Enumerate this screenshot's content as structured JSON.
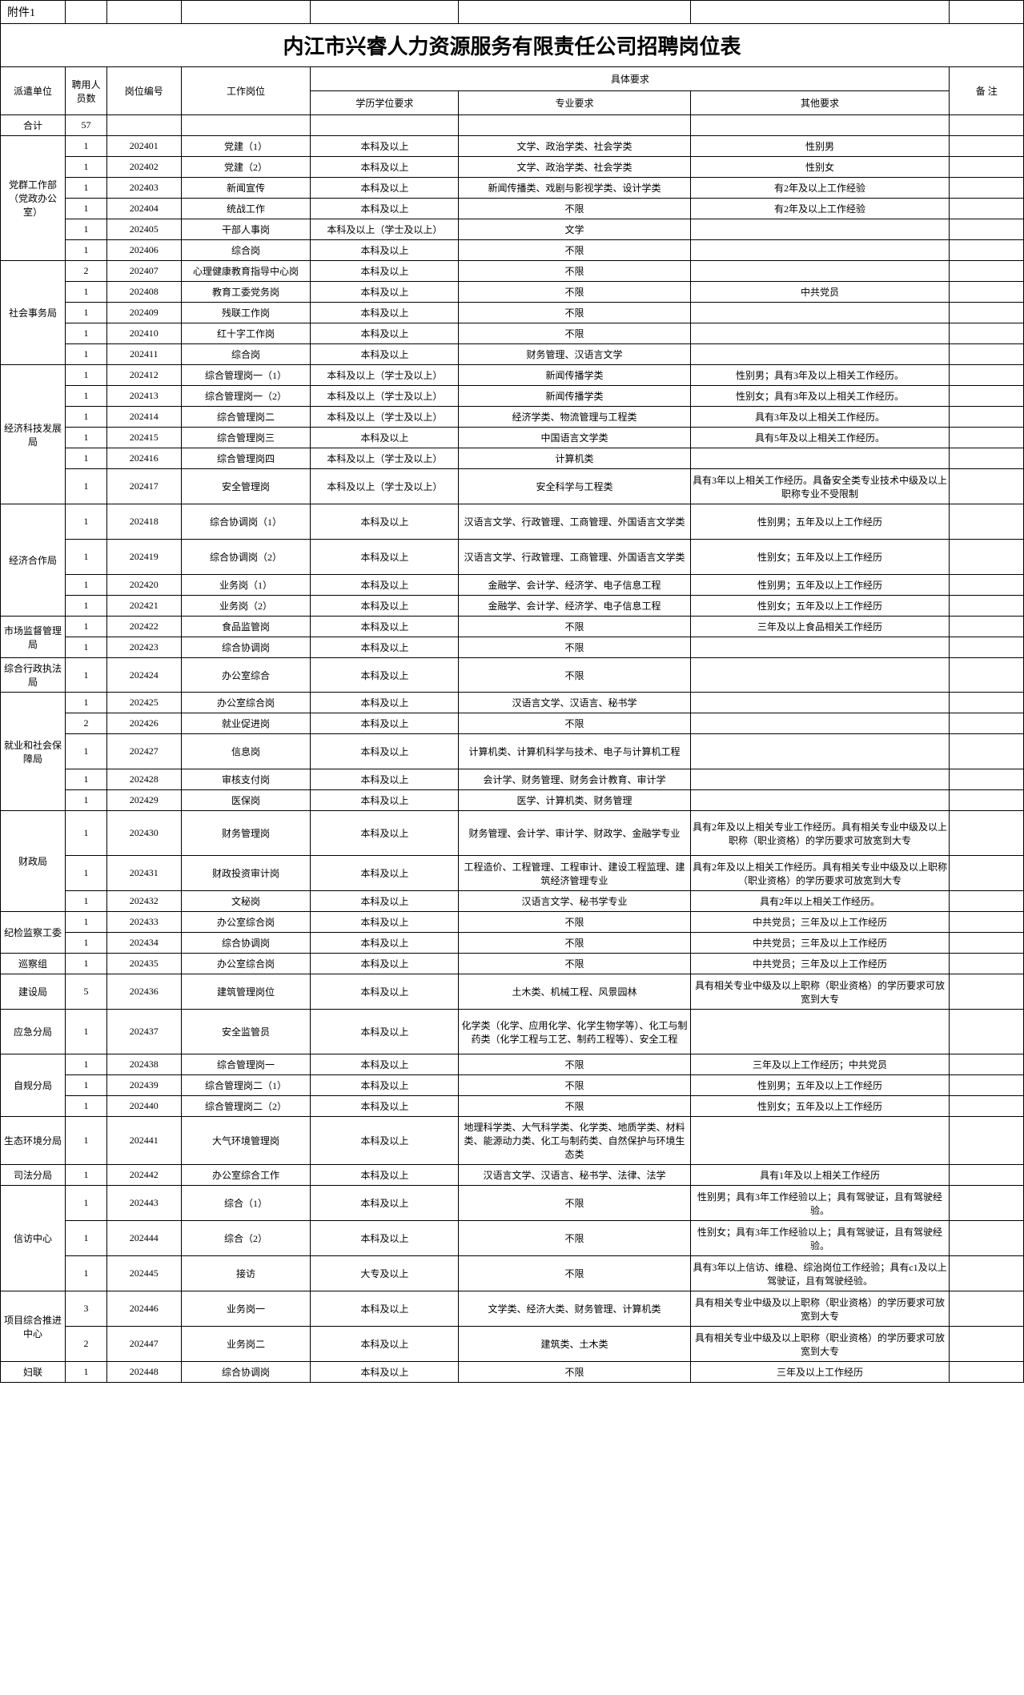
{
  "attach_label": "附件1",
  "title": "内江市兴睿人力资源服务有限责任公司招聘岗位表",
  "headers": {
    "unit": "派遣单位",
    "count": "聘用人员数",
    "code": "岗位编号",
    "position": "工作岗位",
    "req_group": "具体要求",
    "edu": "学历学位要求",
    "major": "专业要求",
    "other": "其他要求",
    "remark": "备  注"
  },
  "total_label": "合计",
  "total_count": "57",
  "groups": [
    {
      "unit": "党群工作部（党政办公室）",
      "rows": [
        {
          "count": "1",
          "code": "202401",
          "position": "党建（1）",
          "edu": "本科及以上",
          "major": "文学、政治学类、社会学类",
          "other": "性别男",
          "remark": ""
        },
        {
          "count": "1",
          "code": "202402",
          "position": "党建（2）",
          "edu": "本科及以上",
          "major": "文学、政治学类、社会学类",
          "other": "性别女",
          "remark": ""
        },
        {
          "count": "1",
          "code": "202403",
          "position": "新闻宣传",
          "edu": "本科及以上",
          "major": "新闻传播类、戏剧与影视学类、设计学类",
          "other": "有2年及以上工作经验",
          "remark": ""
        },
        {
          "count": "1",
          "code": "202404",
          "position": "统战工作",
          "edu": "本科及以上",
          "major": "不限",
          "other": "有2年及以上工作经验",
          "remark": ""
        },
        {
          "count": "1",
          "code": "202405",
          "position": "干部人事岗",
          "edu": "本科及以上（学士及以上）",
          "major": "文学",
          "other": "",
          "remark": ""
        },
        {
          "count": "1",
          "code": "202406",
          "position": "综合岗",
          "edu": "本科及以上",
          "major": "不限",
          "other": "",
          "remark": ""
        }
      ]
    },
    {
      "unit": "社会事务局",
      "rows": [
        {
          "count": "2",
          "code": "202407",
          "position": "心理健康教育指导中心岗",
          "edu": "本科及以上",
          "major": "不限",
          "other": "",
          "remark": ""
        },
        {
          "count": "1",
          "code": "202408",
          "position": "教育工委党务岗",
          "edu": "本科及以上",
          "major": "不限",
          "other": "中共党员",
          "remark": ""
        },
        {
          "count": "1",
          "code": "202409",
          "position": "残联工作岗",
          "edu": "本科及以上",
          "major": "不限",
          "other": "",
          "remark": ""
        },
        {
          "count": "1",
          "code": "202410",
          "position": "红十字工作岗",
          "edu": "本科及以上",
          "major": "不限",
          "other": "",
          "remark": ""
        },
        {
          "count": "1",
          "code": "202411",
          "position": "综合岗",
          "edu": "本科及以上",
          "major": "财务管理、汉语言文学",
          "other": "",
          "remark": ""
        }
      ]
    },
    {
      "unit": "经济科技发展局",
      "rows": [
        {
          "count": "1",
          "code": "202412",
          "position": "综合管理岗一（1）",
          "edu": "本科及以上（学士及以上）",
          "major": "新闻传播学类",
          "other": "性别男；具有3年及以上相关工作经历。",
          "remark": ""
        },
        {
          "count": "1",
          "code": "202413",
          "position": "综合管理岗一（2）",
          "edu": "本科及以上（学士及以上）",
          "major": "新闻传播学类",
          "other": "性别女；具有3年及以上相关工作经历。",
          "remark": ""
        },
        {
          "count": "1",
          "code": "202414",
          "position": "综合管理岗二",
          "edu": "本科及以上（学士及以上）",
          "major": "经济学类、物流管理与工程类",
          "other": "具有3年及以上相关工作经历。",
          "remark": ""
        },
        {
          "count": "1",
          "code": "202415",
          "position": "综合管理岗三",
          "edu": "本科及以上",
          "major": "中国语言文学类",
          "other": "具有5年及以上相关工作经历。",
          "remark": ""
        },
        {
          "count": "1",
          "code": "202416",
          "position": "综合管理岗四",
          "edu": "本科及以上（学士及以上）",
          "major": "计算机类",
          "other": "",
          "remark": ""
        },
        {
          "count": "1",
          "code": "202417",
          "position": "安全管理岗",
          "edu": "本科及以上（学士及以上）",
          "major": "安全科学与工程类",
          "other": "具有3年以上相关工作经历。具备安全类专业技术中级及以上职称专业不受限制",
          "remark": ""
        }
      ]
    },
    {
      "unit": "经济合作局",
      "rows": [
        {
          "count": "1",
          "code": "202418",
          "position": "综合协调岗（1）",
          "edu": "本科及以上",
          "major": "汉语言文学、行政管理、工商管理、外国语言文学类",
          "other": "性别男；五年及以上工作经历",
          "remark": ""
        },
        {
          "count": "1",
          "code": "202419",
          "position": "综合协调岗（2）",
          "edu": "本科及以上",
          "major": "汉语言文学、行政管理、工商管理、外国语言文学类",
          "other": "性别女；五年及以上工作经历",
          "remark": ""
        },
        {
          "count": "1",
          "code": "202420",
          "position": "业务岗（1）",
          "edu": "本科及以上",
          "major": "金融学、会计学、经济学、电子信息工程",
          "other": "性别男；五年及以上工作经历",
          "remark": ""
        },
        {
          "count": "1",
          "code": "202421",
          "position": "业务岗（2）",
          "edu": "本科及以上",
          "major": "金融学、会计学、经济学、电子信息工程",
          "other": "性别女；五年及以上工作经历",
          "remark": ""
        }
      ]
    },
    {
      "unit": "市场监督管理局",
      "rows": [
        {
          "count": "1",
          "code": "202422",
          "position": "食品监管岗",
          "edu": "本科及以上",
          "major": "不限",
          "other": "三年及以上食品相关工作经历",
          "remark": ""
        },
        {
          "count": "1",
          "code": "202423",
          "position": "综合协调岗",
          "edu": "本科及以上",
          "major": "不限",
          "other": "",
          "remark": ""
        }
      ]
    },
    {
      "unit": "综合行政执法局",
      "rows": [
        {
          "count": "1",
          "code": "202424",
          "position": "办公室综合",
          "edu": "本科及以上",
          "major": "不限",
          "other": "",
          "remark": ""
        }
      ]
    },
    {
      "unit": "就业和社会保障局",
      "rows": [
        {
          "count": "1",
          "code": "202425",
          "position": "办公室综合岗",
          "edu": "本科及以上",
          "major": "汉语言文学、汉语言、秘书学",
          "other": "",
          "remark": ""
        },
        {
          "count": "2",
          "code": "202426",
          "position": "就业促进岗",
          "edu": "本科及以上",
          "major": "不限",
          "other": "",
          "remark": ""
        },
        {
          "count": "1",
          "code": "202427",
          "position": "信息岗",
          "edu": "本科及以上",
          "major": "计算机类、计算机科学与技术、电子与计算机工程",
          "other": "",
          "remark": ""
        },
        {
          "count": "1",
          "code": "202428",
          "position": "审核支付岗",
          "edu": "本科及以上",
          "major": "会计学、财务管理、财务会计教育、审计学",
          "other": "",
          "remark": ""
        },
        {
          "count": "1",
          "code": "202429",
          "position": "医保岗",
          "edu": "本科及以上",
          "major": "医学、计算机类、财务管理",
          "other": "",
          "remark": ""
        }
      ]
    },
    {
      "unit": "财政局",
      "rows": [
        {
          "count": "1",
          "code": "202430",
          "position": "财务管理岗",
          "edu": "本科及以上",
          "major": "财务管理、会计学、审计学、财政学、金融学专业",
          "other": "具有2年及以上相关专业工作经历。具有相关专业中级及以上职称（职业资格）的学历要求可放宽到大专",
          "remark": ""
        },
        {
          "count": "1",
          "code": "202431",
          "position": "财政投资审计岗",
          "edu": "本科及以上",
          "major": "工程造价、工程管理、工程审计、建设工程监理、建筑经济管理专业",
          "other": "具有2年及以上相关工作经历。具有相关专业中级及以上职称（职业资格）的学历要求可放宽到大专",
          "remark": ""
        },
        {
          "count": "1",
          "code": "202432",
          "position": "文秘岗",
          "edu": "本科及以上",
          "major": "汉语言文学、秘书学专业",
          "other": "具有2年以上相关工作经历。",
          "remark": ""
        }
      ]
    },
    {
      "unit": "纪检监察工委",
      "rows": [
        {
          "count": "1",
          "code": "202433",
          "position": "办公室综合岗",
          "edu": "本科及以上",
          "major": "不限",
          "other": "中共党员；三年及以上工作经历",
          "remark": ""
        },
        {
          "count": "1",
          "code": "202434",
          "position": "综合协调岗",
          "edu": "本科及以上",
          "major": "不限",
          "other": "中共党员；三年及以上工作经历",
          "remark": ""
        }
      ]
    },
    {
      "unit": "巡察组",
      "rows": [
        {
          "count": "1",
          "code": "202435",
          "position": "办公室综合岗",
          "edu": "本科及以上",
          "major": "不限",
          "other": "中共党员；三年及以上工作经历",
          "remark": ""
        }
      ]
    },
    {
      "unit": "建设局",
      "rows": [
        {
          "count": "5",
          "code": "202436",
          "position": "建筑管理岗位",
          "edu": "本科及以上",
          "major": "土木类、机械工程、风景园林",
          "other": "具有相关专业中级及以上职称（职业资格）的学历要求可放宽到大专",
          "remark": ""
        }
      ]
    },
    {
      "unit": "应急分局",
      "rows": [
        {
          "count": "1",
          "code": "202437",
          "position": "安全监管员",
          "edu": "本科及以上",
          "major": "化学类（化学、应用化学、化学生物学等）、化工与制药类（化学工程与工艺、制药工程等）、安全工程",
          "other": "",
          "remark": ""
        }
      ]
    },
    {
      "unit": "自规分局",
      "rows": [
        {
          "count": "1",
          "code": "202438",
          "position": "综合管理岗一",
          "edu": "本科及以上",
          "major": "不限",
          "other": "三年及以上工作经历；中共党员",
          "remark": ""
        },
        {
          "count": "1",
          "code": "202439",
          "position": "综合管理岗二（1）",
          "edu": "本科及以上",
          "major": "不限",
          "other": "性别男；五年及以上工作经历",
          "remark": ""
        },
        {
          "count": "1",
          "code": "202440",
          "position": "综合管理岗二（2）",
          "edu": "本科及以上",
          "major": "不限",
          "other": "性别女；五年及以上工作经历",
          "remark": ""
        }
      ]
    },
    {
      "unit": "生态环境分局",
      "rows": [
        {
          "count": "1",
          "code": "202441",
          "position": "大气环境管理岗",
          "edu": "本科及以上",
          "major": "地理科学类、大气科学类、化学类、地质学类、材料类、能源动力类、化工与制药类、自然保护与环境生态类",
          "other": "",
          "remark": ""
        }
      ]
    },
    {
      "unit": "司法分局",
      "rows": [
        {
          "count": "1",
          "code": "202442",
          "position": "办公室综合工作",
          "edu": "本科及以上",
          "major": "汉语言文学、汉语言、秘书学、法律、法学",
          "other": "具有1年及以上相关工作经历",
          "remark": ""
        }
      ]
    },
    {
      "unit": "信访中心",
      "rows": [
        {
          "count": "1",
          "code": "202443",
          "position": "综合（1）",
          "edu": "本科及以上",
          "major": "不限",
          "other": "性别男；具有3年工作经验以上；具有驾驶证，且有驾驶经验。",
          "remark": ""
        },
        {
          "count": "1",
          "code": "202444",
          "position": "综合（2）",
          "edu": "本科及以上",
          "major": "不限",
          "other": "性别女；具有3年工作经验以上；具有驾驶证，且有驾驶经验。",
          "remark": ""
        },
        {
          "count": "1",
          "code": "202445",
          "position": "接访",
          "edu": "大专及以上",
          "major": "不限",
          "other": "具有3年以上信访、维稳、综治岗位工作经验；具有c1及以上驾驶证，且有驾驶经验。",
          "remark": ""
        }
      ]
    },
    {
      "unit": "项目综合推进中心",
      "rows": [
        {
          "count": "3",
          "code": "202446",
          "position": "业务岗一",
          "edu": "本科及以上",
          "major": "文学类、经济大类、财务管理、计算机类",
          "other": "具有相关专业中级及以上职称（职业资格）的学历要求可放宽到大专",
          "remark": ""
        },
        {
          "count": "2",
          "code": "202447",
          "position": "业务岗二",
          "edu": "本科及以上",
          "major": "建筑类、土木类",
          "other": "具有相关专业中级及以上职称（职业资格）的学历要求可放宽到大专",
          "remark": ""
        }
      ]
    },
    {
      "unit": "妇联",
      "rows": [
        {
          "count": "1",
          "code": "202448",
          "position": "综合协调岗",
          "edu": "本科及以上",
          "major": "不限",
          "other": "三年及以上工作经历",
          "remark": ""
        }
      ]
    }
  ]
}
